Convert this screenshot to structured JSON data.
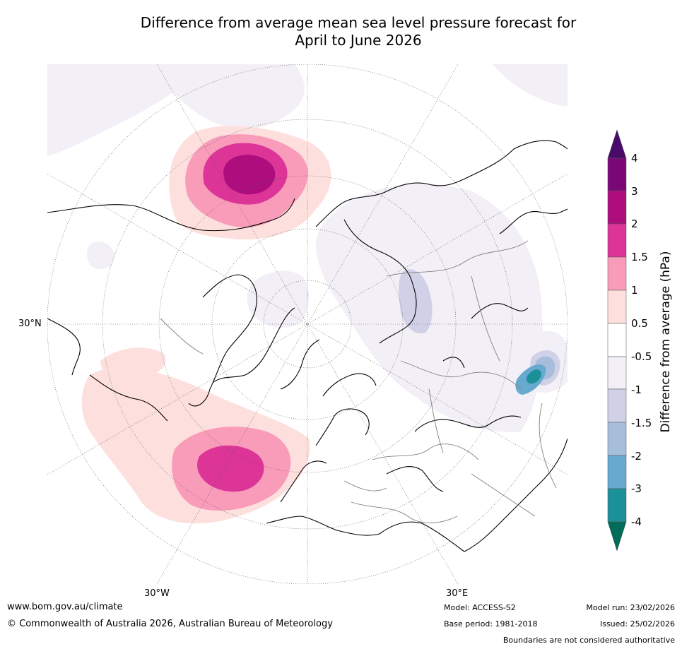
{
  "title": {
    "line1": "Difference from average mean sea level pressure forecast for",
    "line2": "April to June 2026"
  },
  "map": {
    "labels": {
      "lat30n": "30°N",
      "lon30w": "30°W",
      "lon30e": "30°E"
    },
    "projection": "north-polar-stereographic",
    "colors": {
      "land_outline": "#000000",
      "borders": "#808080",
      "graticule": "#555555"
    }
  },
  "colorbar": {
    "label": "Difference from average (hPa)",
    "ticks": [
      "4",
      "3",
      "2",
      "1.5",
      "1",
      "0.5",
      "-0.5",
      "-1",
      "-1.5",
      "-2",
      "-3",
      "-4"
    ],
    "colors": {
      "above_4": "#4a0a6a",
      "3_to_4": "#7b0777",
      "2_to_3": "#ad0d7d",
      "1.5_to_2": "#dd3497",
      "1_to_1.5": "#f99cba",
      "0.5_to_1": "#fde0dd",
      "-0.5_to_0.5": "#ffffff",
      "-1_to_-0.5": "#f2eff6",
      "-1.5_to_-1": "#d0d1e6",
      "-2_to_-1.5": "#a6bddb",
      "-3_to_-2": "#67a9cf",
      "-4_to_-3": "#1c9099",
      "below_-4": "#016c59"
    }
  },
  "footer": {
    "website": "www.bom.gov.au/climate",
    "copyright": "© Commonwealth of Australia 2026, Australian Bureau of Meteorology",
    "model": "Model: ACCESS-S2",
    "base_period": "Base period: 1981-2018",
    "model_run": "Model run: 23/02/2026",
    "issued": "Issued: 25/02/2026",
    "disclaimer": "Boundaries are not considered authoritative"
  }
}
